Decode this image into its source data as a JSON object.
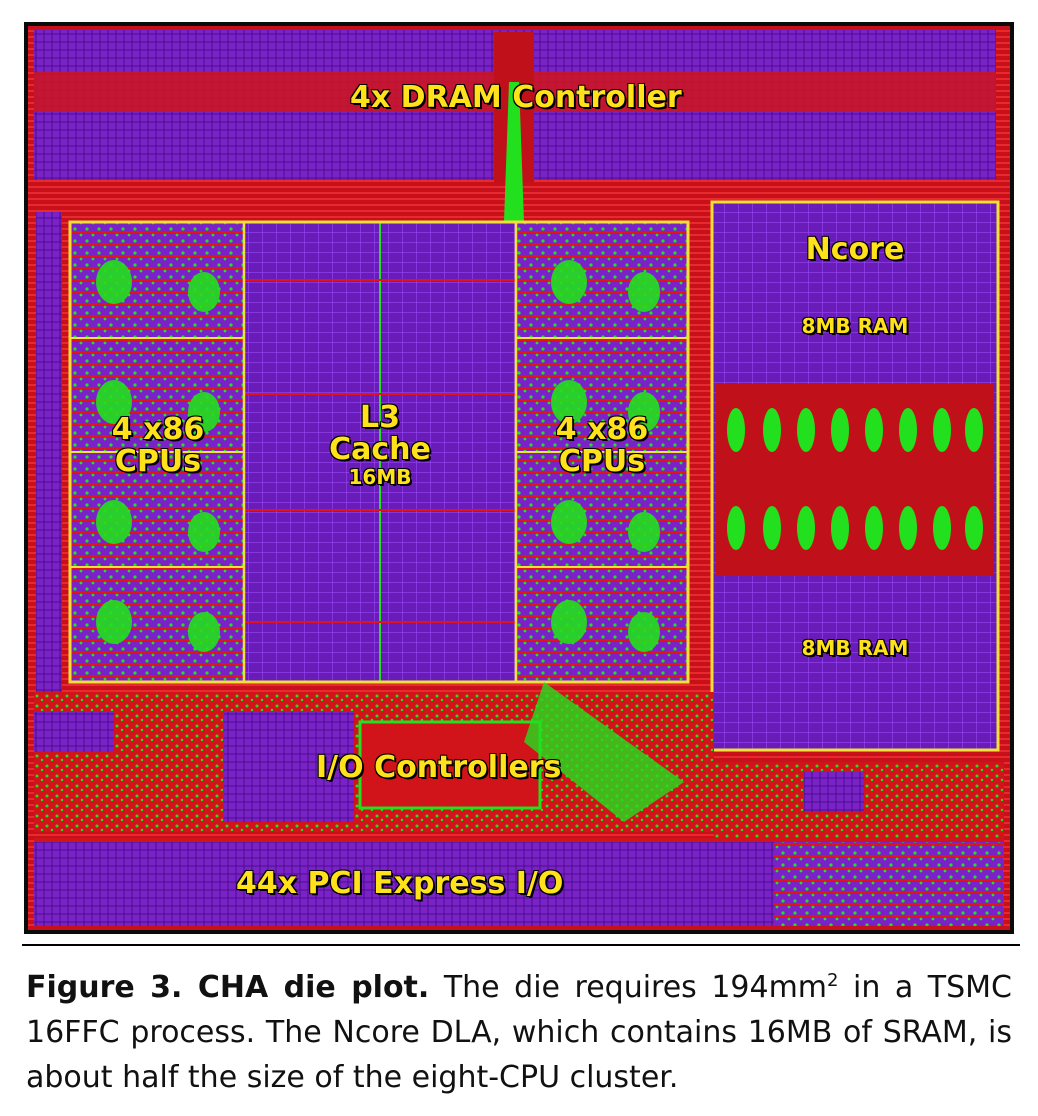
{
  "blocks": {
    "dram": "4x DRAM Controller",
    "cpus_left_1": "4 x86",
    "cpus_left_2": "CPUs",
    "l3_1": "L3",
    "l3_2": "Cache",
    "l3_3": "16MB",
    "cpus_right_1": "4 x86",
    "cpus_right_2": "CPUs",
    "ncore": "Ncore",
    "ram_top": "8MB RAM",
    "ram_bottom": "8MB RAM",
    "io": "I/O Controllers",
    "pci": "44x PCI Express I/O"
  },
  "caption": {
    "title": "Figure 3. CHA die plot.",
    "text_a": " The die requires 194mm",
    "sup": "2",
    "text_b": " in a TSMC 16FFC process. The Ncore DLA, which contains 16MB of SRAM, is about half the size of the eight-CPU cluster."
  },
  "colors": {
    "label": "#ffe21a",
    "outline": "#f2df3a",
    "metal_red": "#e0141a",
    "metal_purple": "#7a22c8",
    "metal_green": "#22e01e"
  }
}
